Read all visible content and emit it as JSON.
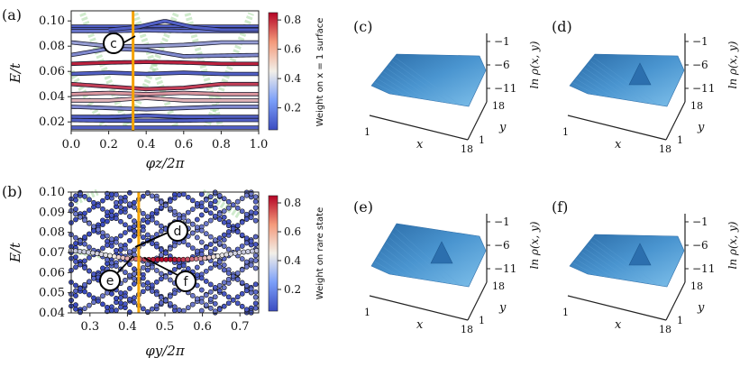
{
  "figure": {
    "panels": {
      "a": {
        "tag": "(a)",
        "callouts": [
          "c"
        ]
      },
      "b": {
        "tag": "(b)",
        "callouts": [
          "d",
          "e",
          "f"
        ]
      },
      "c": {
        "tag": "(c)"
      },
      "d": {
        "tag": "(d)"
      },
      "e": {
        "tag": "(e)"
      },
      "f": {
        "tag": "(f)"
      }
    },
    "surface_axes": {
      "zlabel": "ln ρ(x, y)",
      "xlabel": "x",
      "ylabel": "y",
      "x_ticks": [
        "1",
        "18"
      ],
      "y_ticks": [
        "1",
        "18"
      ],
      "z_ticks": [
        "−1",
        "−6",
        "−11"
      ]
    }
  },
  "colors": {
    "highlight_line": "#f5a300",
    "cmap_low": "#3b4cc0",
    "cmap_mid": "#f2efe8",
    "cmap_high": "#b40426",
    "background_band": "#9fd89a",
    "surface": "#3f86c4"
  },
  "chart_data": [
    {
      "id": "a",
      "type": "scatter",
      "xlabel": "φz/2π",
      "ylabel": "E/t",
      "xlim": [
        0.0,
        1.0
      ],
      "ylim": [
        0.013,
        0.108
      ],
      "x_ticks": [
        "0.0",
        "0.2",
        "0.4",
        "0.6",
        "0.8",
        "1.0"
      ],
      "y_ticks": [
        "0.02",
        "0.04",
        "0.06",
        "0.08",
        "0.10"
      ],
      "colorbar": {
        "label": "Weight on x = 1 surface",
        "ticks": [
          "0.2",
          "0.4",
          "0.6",
          "0.8"
        ],
        "range": [
          0.05,
          0.85
        ]
      },
      "vertical_line_x": 0.33,
      "series": [
        {
          "values": [
            0.0955,
            0.0955,
            0.0955,
            0.0955,
            0.0955,
            0.0955
          ],
          "x": [
            0,
            0.2,
            0.4,
            0.6,
            0.8,
            1.0
          ],
          "weight": 0.1
        },
        {
          "values": [
            0.0935,
            0.0935,
            0.0935,
            0.0935,
            0.0935,
            0.0935
          ],
          "x": [
            0,
            0.2,
            0.4,
            0.6,
            0.8,
            1.0
          ],
          "weight": 0.1
        },
        {
          "values": [
            0.092,
            0.092,
            0.0925,
            0.092,
            0.092,
            0.092
          ],
          "x": [
            0,
            0.2,
            0.4,
            0.6,
            0.8,
            1.0
          ],
          "weight": 0.15
        },
        {
          "values": [
            0.093,
            0.095,
            0.1,
            0.095,
            0.093,
            0.093
          ],
          "x": [
            0.2,
            0.35,
            0.5,
            0.65,
            0.8,
            1.0
          ],
          "weight": 0.1
        },
        {
          "values": [
            0.083,
            0.08,
            0.08,
            0.081,
            0.083,
            0.083
          ],
          "x": [
            0,
            0.2,
            0.4,
            0.6,
            0.8,
            1.0
          ],
          "weight": 0.25
        },
        {
          "values": [
            0.073,
            0.078,
            0.077,
            0.072,
            0.0725,
            0.073
          ],
          "x": [
            0,
            0.2,
            0.4,
            0.6,
            0.8,
            1.0
          ],
          "weight": 0.2
        },
        {
          "values": [
            0.066,
            0.067,
            0.0675,
            0.067,
            0.066,
            0.066
          ],
          "x": [
            0,
            0.2,
            0.4,
            0.6,
            0.8,
            1.0
          ],
          "weight": 0.8
        },
        {
          "values": [
            0.058,
            0.059,
            0.058,
            0.059,
            0.058,
            0.058
          ],
          "x": [
            0,
            0.2,
            0.4,
            0.6,
            0.8,
            1.0
          ],
          "weight": 0.1
        },
        {
          "values": [
            0.05,
            0.048,
            0.046,
            0.047,
            0.05,
            0.05
          ],
          "x": [
            0,
            0.2,
            0.4,
            0.6,
            0.8,
            1.0
          ],
          "weight": 0.75
        },
        {
          "values": [
            0.042,
            0.043,
            0.042,
            0.043,
            0.042,
            0.042
          ],
          "x": [
            0,
            0.2,
            0.4,
            0.6,
            0.8,
            1.0
          ],
          "weight": 0.6
        },
        {
          "values": [
            0.037,
            0.037,
            0.039,
            0.037,
            0.037,
            0.037
          ],
          "x": [
            0,
            0.2,
            0.4,
            0.6,
            0.8,
            1.0
          ],
          "weight": 0.55
        },
        {
          "values": [
            0.032,
            0.031,
            0.03,
            0.031,
            0.032,
            0.032
          ],
          "x": [
            0,
            0.2,
            0.4,
            0.6,
            0.8,
            1.0
          ],
          "weight": 0.2
        },
        {
          "values": [
            0.024,
            0.024,
            0.025,
            0.024,
            0.024,
            0.024
          ],
          "x": [
            0,
            0.2,
            0.4,
            0.6,
            0.8,
            1.0
          ],
          "weight": 0.1
        },
        {
          "values": [
            0.0215,
            0.021,
            0.021,
            0.021,
            0.0215,
            0.0215
          ],
          "x": [
            0,
            0.2,
            0.4,
            0.6,
            0.8,
            1.0
          ],
          "weight": 0.1
        },
        {
          "values": [
            0.0155,
            0.0155,
            0.0155,
            0.0155,
            0.0155,
            0.0155
          ],
          "x": [
            0,
            0.2,
            0.4,
            0.6,
            0.8,
            1.0
          ],
          "weight": 0.1
        }
      ]
    },
    {
      "id": "b",
      "type": "scatter",
      "xlabel": "φy/2π",
      "ylabel": "E/t",
      "xlim": [
        0.25,
        0.75
      ],
      "ylim": [
        0.04,
        0.1
      ],
      "x_ticks": [
        "0.3",
        "0.4",
        "0.5",
        "0.6",
        "0.7"
      ],
      "y_ticks": [
        "0.04",
        "0.05",
        "0.06",
        "0.07",
        "0.08",
        "0.09",
        "0.10"
      ],
      "colorbar": {
        "label": "Weight on rare state",
        "ticks": [
          "0.2",
          "0.4",
          "0.6",
          "0.8"
        ],
        "range": [
          0.05,
          0.85
        ]
      },
      "vertical_line_x": 0.43,
      "rare_state_band": {
        "x": [
          0.25,
          0.3,
          0.35,
          0.4,
          0.45,
          0.5,
          0.55,
          0.6,
          0.65,
          0.7,
          0.75
        ],
        "values": [
          0.071,
          0.07,
          0.0685,
          0.067,
          0.0665,
          0.0665,
          0.0665,
          0.067,
          0.0685,
          0.07,
          0.071
        ]
      }
    }
  ]
}
